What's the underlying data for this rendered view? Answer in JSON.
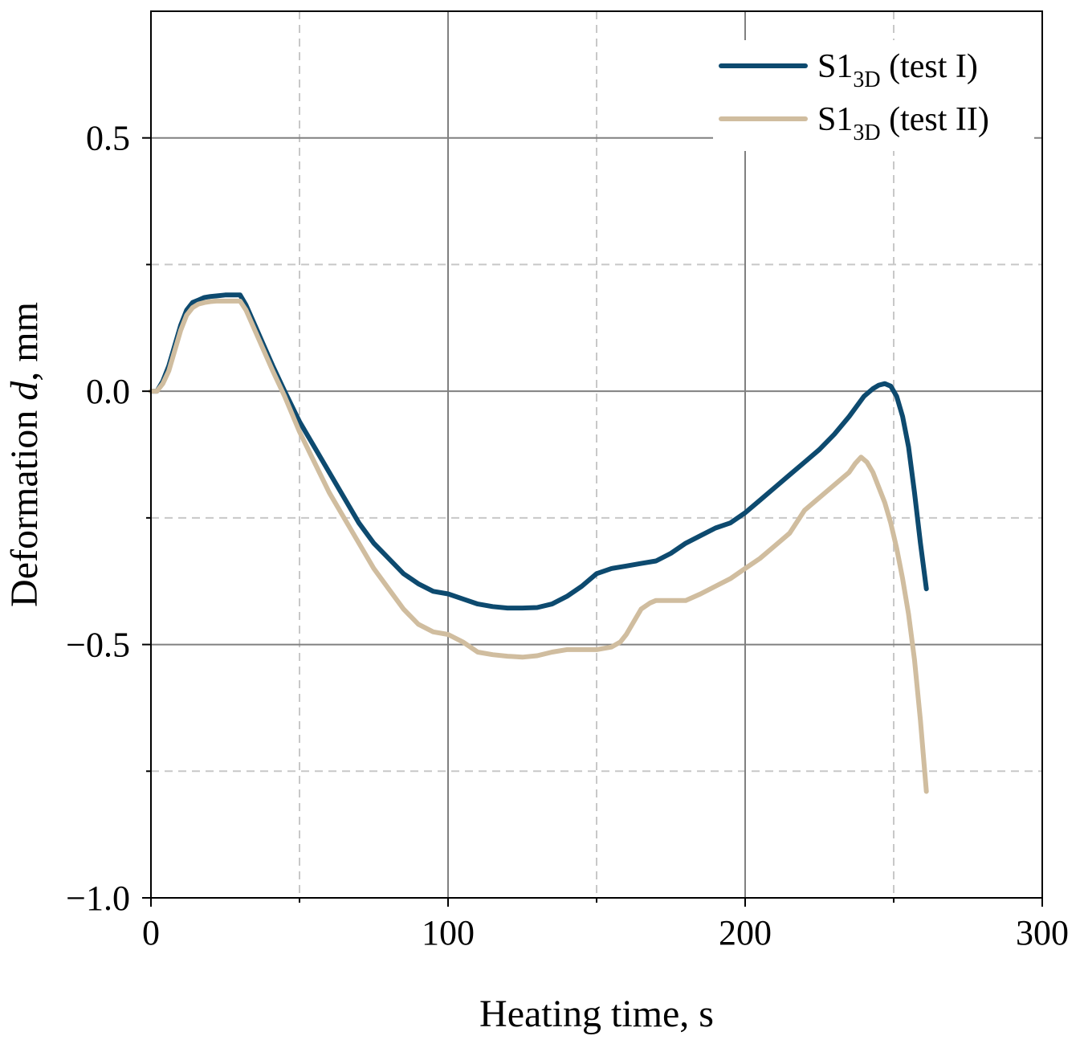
{
  "chart_data": {
    "type": "line",
    "title": "",
    "xlabel": "Heating time, s",
    "ylabel_main": "Deformation ",
    "ylabel_italic": "d",
    "ylabel_unit": ", mm",
    "xlim": [
      0,
      300
    ],
    "ylim": [
      -1.0,
      0.75
    ],
    "x_major_ticks": [
      0,
      100,
      200,
      300
    ],
    "x_major_tick_labels": [
      "0",
      "100",
      "200",
      "300"
    ],
    "x_minor_ticks": [
      50,
      150,
      250
    ],
    "y_major_ticks": [
      -1.0,
      -0.5,
      0.0,
      0.5
    ],
    "y_major_tick_labels": [
      "−1.0",
      "−0.5",
      "0.0",
      "0.5"
    ],
    "y_minor_ticks": [
      -0.75,
      -0.25,
      0.25
    ],
    "grid": true,
    "legend_position": "top-right",
    "series": [
      {
        "name": "S1",
        "name_sub": "3D",
        "name_suffix": " (test I)",
        "color": "#0d4a6f",
        "x": [
          0,
          2,
          4,
          6,
          8,
          10,
          12,
          14,
          16,
          18,
          20,
          22,
          25,
          28,
          30,
          32,
          35,
          38,
          41,
          45,
          50,
          55,
          60,
          65,
          70,
          75,
          80,
          85,
          90,
          95,
          100,
          105,
          110,
          115,
          120,
          125,
          130,
          135,
          140,
          145,
          150,
          155,
          160,
          165,
          170,
          175,
          180,
          185,
          190,
          195,
          200,
          205,
          210,
          215,
          220,
          225,
          230,
          235,
          240,
          243,
          245,
          247,
          249,
          251,
          253,
          255,
          257,
          259,
          261
        ],
        "values": [
          0.0,
          0.0,
          0.02,
          0.05,
          0.09,
          0.13,
          0.16,
          0.175,
          0.18,
          0.185,
          0.187,
          0.188,
          0.19,
          0.19,
          0.19,
          0.17,
          0.13,
          0.09,
          0.05,
          0.0,
          -0.06,
          -0.11,
          -0.16,
          -0.21,
          -0.26,
          -0.3,
          -0.33,
          -0.36,
          -0.38,
          -0.395,
          -0.4,
          -0.41,
          -0.42,
          -0.425,
          -0.428,
          -0.428,
          -0.427,
          -0.42,
          -0.405,
          -0.385,
          -0.36,
          -0.35,
          -0.345,
          -0.34,
          -0.335,
          -0.32,
          -0.3,
          -0.285,
          -0.27,
          -0.26,
          -0.24,
          -0.215,
          -0.19,
          -0.165,
          -0.14,
          -0.115,
          -0.085,
          -0.05,
          -0.01,
          0.005,
          0.012,
          0.015,
          0.01,
          -0.01,
          -0.05,
          -0.11,
          -0.2,
          -0.3,
          -0.39
        ]
      },
      {
        "name": "S1",
        "name_sub": "3D",
        "name_suffix": " (test II)",
        "color": "#d0bd9f",
        "x": [
          0,
          2,
          4,
          6,
          8,
          10,
          12,
          14,
          16,
          18,
          20,
          22,
          25,
          28,
          30,
          32,
          35,
          38,
          41,
          45,
          50,
          55,
          60,
          65,
          70,
          75,
          80,
          85,
          90,
          95,
          100,
          105,
          110,
          115,
          120,
          125,
          130,
          135,
          140,
          145,
          150,
          155,
          158,
          160,
          163,
          165,
          168,
          170,
          175,
          180,
          185,
          190,
          195,
          200,
          205,
          210,
          215,
          220,
          225,
          230,
          235,
          237,
          239,
          241,
          243,
          245,
          247,
          249,
          251,
          253,
          255,
          257,
          259,
          261
        ],
        "values": [
          0.0,
          0.0,
          0.015,
          0.04,
          0.08,
          0.12,
          0.15,
          0.165,
          0.172,
          0.175,
          0.177,
          0.178,
          0.178,
          0.178,
          0.178,
          0.16,
          0.12,
          0.08,
          0.04,
          -0.01,
          -0.08,
          -0.14,
          -0.2,
          -0.25,
          -0.3,
          -0.35,
          -0.39,
          -0.43,
          -0.46,
          -0.475,
          -0.48,
          -0.495,
          -0.515,
          -0.52,
          -0.523,
          -0.525,
          -0.522,
          -0.515,
          -0.51,
          -0.51,
          -0.51,
          -0.505,
          -0.495,
          -0.48,
          -0.45,
          -0.43,
          -0.418,
          -0.413,
          -0.413,
          -0.413,
          -0.4,
          -0.385,
          -0.37,
          -0.35,
          -0.33,
          -0.305,
          -0.28,
          -0.235,
          -0.21,
          -0.185,
          -0.16,
          -0.143,
          -0.13,
          -0.14,
          -0.16,
          -0.19,
          -0.22,
          -0.26,
          -0.31,
          -0.37,
          -0.44,
          -0.53,
          -0.65,
          -0.79
        ]
      }
    ]
  }
}
